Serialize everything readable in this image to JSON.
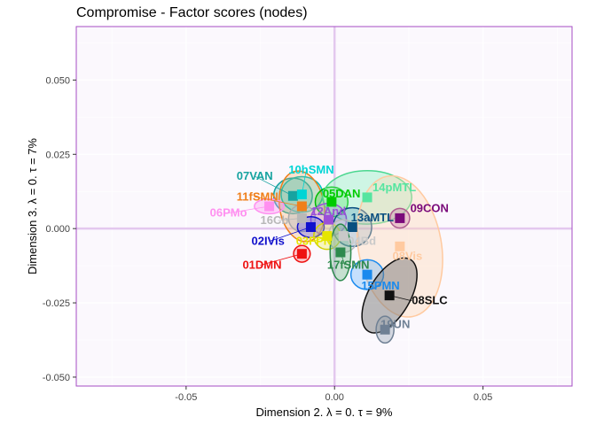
{
  "chart_data": {
    "type": "scatter",
    "title": "Compromise - Factor scores (nodes)",
    "xlabel": "Dimension 2.   λ = 0.   τ = 9%",
    "ylabel": "Dimension 3.   λ = 0.   τ = 7%",
    "xlim": [
      -0.087,
      0.08
    ],
    "ylim": [
      -0.053,
      0.068
    ],
    "xticks": [
      -0.05,
      0.0,
      0.05
    ],
    "xtick_labels": [
      "-0.05",
      "0.00",
      "0.05"
    ],
    "yticks": [
      -0.05,
      -0.025,
      0.0,
      0.025,
      0.05
    ],
    "ytick_labels": [
      "-0.050",
      "-0.025",
      "0.000",
      "0.025",
      "0.050"
    ],
    "grid": true,
    "legend": "none",
    "colors": {
      "panel_border": "#a64dc4",
      "panel_bg": "#fbf8fd",
      "origin_line": "#e3c8ee"
    },
    "points": [
      {
        "label": "07VAN",
        "x": -0.014,
        "y": 0.011,
        "color": "#17a3a0",
        "lx": -0.033,
        "ly": 0.0165,
        "ell": {
          "rx": 0.0065,
          "ry": 0.006,
          "ang": 0,
          "fill": "#17a3a0",
          "op": 0.25,
          "stroke": "#17a3a0"
        }
      },
      {
        "label": "10hSMN",
        "x": -0.011,
        "y": 0.0115,
        "color": "#00d5d5",
        "lx": -0.0155,
        "ly": 0.0185,
        "ell": {
          "rx": 0.007,
          "ry": 0.006,
          "ang": 0,
          "fill": "#00e5e5",
          "op": 0.25,
          "stroke": "#00c0c0"
        }
      },
      {
        "label": "11fSMN",
        "x": -0.011,
        "y": 0.0075,
        "color": "#f07f1a",
        "lx": -0.033,
        "ly": 0.0095,
        "ell": {
          "rx": 0.0075,
          "ry": 0.012,
          "ang": -10,
          "fill": "#f59a45",
          "op": 0.25,
          "stroke": "#f07f1a"
        }
      },
      {
        "label": "06PMo",
        "x": -0.022,
        "y": 0.0075,
        "color": "#ff90f0",
        "lx": -0.042,
        "ly": 0.004,
        "ell": {
          "rx": 0.005,
          "ry": 0.0025,
          "ang": 0,
          "fill": "#ff90f0",
          "op": 0.35,
          "stroke": "#ff90f0"
        }
      },
      {
        "label": "16Cb",
        "x": -0.011,
        "y": 0.0035,
        "color": "#b8b8b8",
        "lx": -0.025,
        "ly": 0.0015,
        "ell": {
          "rx": 0.0045,
          "ry": 0.0045,
          "ang": 0,
          "fill": "#bdbdbd",
          "op": 0.45,
          "stroke": "#aaaaaa"
        }
      },
      {
        "label": "05DAN",
        "x": -0.001,
        "y": 0.009,
        "color": "#00cc00",
        "lx": -0.004,
        "ly": 0.0105,
        "ell": {
          "rx": 0.0055,
          "ry": 0.005,
          "ang": 0,
          "fill": "#33dd33",
          "op": 0.3,
          "stroke": "#00bb00"
        }
      },
      {
        "label": "14pMTL",
        "x": 0.011,
        "y": 0.0105,
        "color": "#55e5a0",
        "lx": 0.0128,
        "ly": 0.0125,
        "ell": {
          "rx": 0.015,
          "ry": 0.009,
          "ang": 0,
          "fill": "#7af0b5",
          "op": 0.35,
          "stroke": "#4ad78f"
        }
      },
      {
        "label": "12And",
        "x": -0.002,
        "y": 0.003,
        "color": "#9b4fd8",
        "lx": -0.008,
        "ly": 0.0045,
        "ell": {
          "rx": 0.006,
          "ry": 0.0055,
          "ang": 0,
          "fill": "#b98ae6",
          "op": 0.3,
          "stroke": "#9b4fd8"
        }
      },
      {
        "label": "13aMTL",
        "x": 0.006,
        "y": 0.0005,
        "color": "#0a4f80",
        "lx": 0.0055,
        "ly": 0.0025,
        "ell": {
          "rx": 0.0065,
          "ry": 0.0065,
          "ang": 0,
          "fill": "#3a7fb0",
          "op": 0.25,
          "stroke": "#0a4f80"
        }
      },
      {
        "label": "09CON",
        "x": 0.022,
        "y": 0.0035,
        "color": "#7a0a7a",
        "lx": 0.0255,
        "ly": 0.0055,
        "ell": {
          "rx": 0.0033,
          "ry": 0.0033,
          "ang": 0,
          "fill": "#9a3a9a",
          "op": 0.35,
          "stroke": "#7a0a7a"
        }
      },
      {
        "label": "02IVis",
        "x": -0.008,
        "y": 0.0005,
        "color": "#1010cc",
        "lx": -0.028,
        "ly": -0.0055,
        "ell": {
          "rx": 0.0045,
          "ry": 0.0035,
          "ang": 0,
          "fill": "#4a4aee",
          "op": 0.3,
          "stroke": "#1010cc"
        }
      },
      {
        "label": "03FPN",
        "x": -0.0025,
        "y": -0.0025,
        "color": "#e6e600",
        "lx": -0.013,
        "ly": -0.0055,
        "ell": {
          "rx": 0.0045,
          "ry": 0.0045,
          "ang": 0,
          "fill": "#f0f04a",
          "op": 0.35,
          "stroke": "#d0d000"
        }
      },
      {
        "label": "04Bd",
        "x": 0.003,
        "y": -0.0025,
        "color": "#c9c9c9",
        "lx": 0.0045,
        "ly": -0.0055,
        "ell": {
          "rx": 0.005,
          "ry": 0.0055,
          "ang": 0,
          "fill": "#d5d5d5",
          "op": 0.4,
          "stroke": "#bbbbbb"
        }
      },
      {
        "label": "01DMN",
        "x": -0.011,
        "y": -0.0085,
        "color": "#ee1111",
        "lx": -0.031,
        "ly": -0.0135,
        "ell": {
          "rx": 0.0028,
          "ry": 0.0028,
          "ang": 0,
          "fill": "#ff5555",
          "op": 0.3,
          "stroke": "#ee1111"
        }
      },
      {
        "label": "17fSMN",
        "x": 0.002,
        "y": -0.008,
        "color": "#2d8a4d",
        "lx": -0.0025,
        "ly": -0.0135,
        "ell": {
          "rx": 0.0035,
          "ry": 0.0095,
          "ang": 0,
          "fill": "#4da86a",
          "op": 0.3,
          "stroke": "#2d8a4d"
        }
      },
      {
        "label": "08Vis",
        "x": 0.022,
        "y": -0.006,
        "color": "#ffcaa0",
        "lx": 0.0195,
        "ly": -0.0105,
        "ell": {
          "rx": 0.014,
          "ry": 0.024,
          "ang": -10,
          "fill": "#ffd8b5",
          "op": 0.4,
          "stroke": "#ffcaa0"
        }
      },
      {
        "label": "15PMN",
        "x": 0.011,
        "y": -0.0155,
        "color": "#1a8aee",
        "lx": 0.009,
        "ly": -0.0205,
        "ell": {
          "rx": 0.0055,
          "ry": 0.005,
          "ang": 0,
          "fill": "#4aa8ff",
          "op": 0.3,
          "stroke": "#1a8aee"
        }
      },
      {
        "label": "08SLC",
        "x": 0.0185,
        "y": -0.0225,
        "color": "#111111",
        "lx": 0.026,
        "ly": -0.0255,
        "ell": {
          "rx": 0.007,
          "ry": 0.014,
          "ang": 30,
          "fill": "#7a7a7a",
          "op": 0.5,
          "stroke": "#111111"
        }
      },
      {
        "label": "19UN",
        "x": 0.017,
        "y": -0.034,
        "color": "#6f8094",
        "lx": 0.0155,
        "ly": -0.0335,
        "ell": {
          "rx": 0.003,
          "ry": 0.0045,
          "ang": 0,
          "fill": "#8a9aaa",
          "op": 0.35,
          "stroke": "#6f8094"
        }
      }
    ]
  }
}
